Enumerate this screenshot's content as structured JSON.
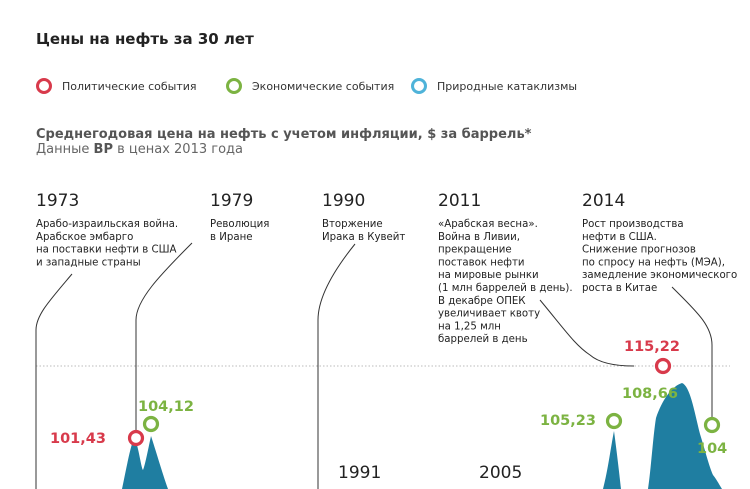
{
  "title": "Цены на нефть за 30 лет",
  "legend": [
    {
      "label": "Политические события",
      "color": "#d83a4b"
    },
    {
      "label": "Экономические события",
      "color": "#7cb342"
    },
    {
      "label": "Природные катаклизмы",
      "color": "#4fb3d9"
    }
  ],
  "subtitle": "Среднегодовая цена на нефть с учетом инфляции, $ за баррель*",
  "source": {
    "prefix": "Данные ",
    "brand": "BP",
    "suffix": " в ценах 2013 года"
  },
  "colors": {
    "area": "#1f7ea1",
    "political": "#d83a4b",
    "economic": "#7cb342",
    "natural": "#4fb3d9",
    "grid": "#bbbbbb",
    "leader": "#333333"
  },
  "chart_data": {
    "type": "area",
    "title": "Среднегодовая цена на нефть с учетом инфляции, $ за баррель*",
    "ylim": [
      0,
      130
    ],
    "gridlines": [
      115.22,
      85
    ],
    "events": [
      {
        "year": "1973",
        "category": "political",
        "lines": [
          "Арабо-израильская война.",
          "Арабское эмбарго",
          "на поставки нефти в США",
          "и западные страны"
        ]
      },
      {
        "year": "1979",
        "category": "political",
        "lines": [
          "Революция",
          "в Иране"
        ]
      },
      {
        "year": "1990",
        "category": "political",
        "lines": [
          "Вторжение",
          "Ирака в Кувейт"
        ]
      },
      {
        "year": "2011",
        "category": "political",
        "lines": [
          "«Арабская весна».",
          "Война в Ливии,",
          "прекращение",
          "поставок нефти",
          "на мировые рынки",
          "(1 млн баррелей в день).",
          "В декабре ОПЕК",
          "увеличивает квоту",
          "на 1,25 млн",
          "баррелей в день"
        ]
      },
      {
        "year": "2014",
        "category": "economic",
        "lines": [
          "Рост производства",
          "нефти в США.",
          "Снижение прогнозов",
          "по спросу на нефть (МЭА),",
          "замедление экономического",
          "роста в Китае"
        ]
      }
    ],
    "points": [
      {
        "label": "101,43",
        "value": 101.43,
        "category": "political"
      },
      {
        "label": "104,12",
        "value": 104.12,
        "category": "economic"
      },
      {
        "label": "105,23",
        "value": 105.23,
        "category": "economic"
      },
      {
        "label": "115,22",
        "value": 115.22,
        "category": "political"
      },
      {
        "label": "108,66",
        "value": 108.66,
        "category": "economic"
      },
      {
        "label": "104",
        "value": 104,
        "category": "economic"
      }
    ],
    "bottom_years": [
      "1991",
      "2005"
    ]
  }
}
